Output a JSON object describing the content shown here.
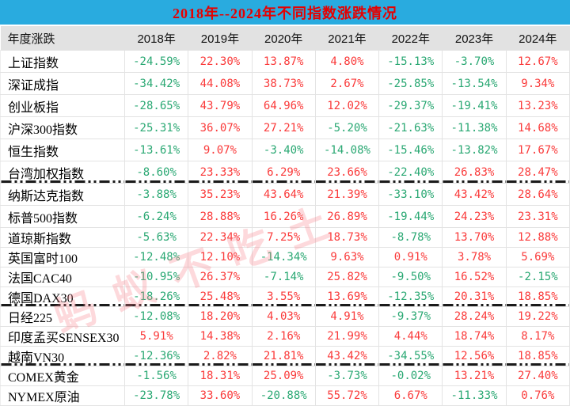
{
  "title": "2018年--2024年不同指数涨跌情况",
  "watermark": "蚂蚁不吃土",
  "colors": {
    "title_bar_bg": "#29abdf",
    "title_text": "#e60000",
    "header_bg": "#e2e2e2",
    "positive_red": "#fa3a3a",
    "negative_green": "#2aa873",
    "grid_border": "#e3e3e3",
    "separator_line": "#1a1a1a"
  },
  "chart_data": {
    "type": "table",
    "title": "2018年--2024年不同指数涨跌情况",
    "legend_note": "red = gain, green = loss; dash-dot lines separate index groups",
    "columns": [
      "年度涨跌",
      "2018年",
      "2019年",
      "2020年",
      "2021年",
      "2022年",
      "2023年",
      "2024年"
    ],
    "rows": [
      {
        "name": "上证指数",
        "values": [
          "-24.59%",
          "22.30%",
          "13.87%",
          "4.80%",
          "-15.13%",
          "-3.70%",
          "12.67%"
        ]
      },
      {
        "name": "深证成指",
        "values": [
          "-34.42%",
          "44.08%",
          "38.73%",
          "2.67%",
          "-25.85%",
          "-13.54%",
          "9.34%"
        ]
      },
      {
        "name": "创业板指",
        "values": [
          "-28.65%",
          "43.79%",
          "64.96%",
          "12.02%",
          "-29.37%",
          "-19.41%",
          "13.23%"
        ]
      },
      {
        "name": "沪深300指数",
        "values": [
          "-25.31%",
          "36.07%",
          "27.21%",
          "-5.20%",
          "-21.63%",
          "-11.38%",
          "14.68%"
        ]
      },
      {
        "name": "恒生指数",
        "values": [
          "-13.61%",
          "9.07%",
          "-3.40%",
          "-14.08%",
          "-15.46%",
          "-13.82%",
          "17.67%"
        ]
      },
      {
        "name": "台湾加权指数",
        "values": [
          "-8.60%",
          "23.33%",
          "6.29%",
          "23.66%",
          "-22.40%",
          "26.83%",
          "28.47%"
        ],
        "group_end": true
      },
      {
        "name": "纳斯达克指数",
        "values": [
          "-3.88%",
          "35.23%",
          "43.64%",
          "21.39%",
          "-33.10%",
          "43.42%",
          "28.64%"
        ]
      },
      {
        "name": "标普500指数",
        "values": [
          "-6.24%",
          "28.88%",
          "16.26%",
          "26.89%",
          "-19.44%",
          "24.23%",
          "23.31%"
        ]
      },
      {
        "name": "道琼斯指数",
        "values": [
          "-5.63%",
          "22.34%",
          "7.25%",
          "18.73%",
          "-8.78%",
          "13.70%",
          "12.88%"
        ]
      },
      {
        "name": "英国富时100",
        "values": [
          "-12.48%",
          "12.10%",
          "-14.34%",
          "9.63%",
          "0.91%",
          "3.78%",
          "5.69%"
        ]
      },
      {
        "name": "法国CAC40",
        "values": [
          "-10.95%",
          "26.37%",
          "-7.14%",
          "25.82%",
          "-9.50%",
          "16.52%",
          "-2.15%"
        ]
      },
      {
        "name": "德国DAX30",
        "values": [
          "-18.26%",
          "25.48%",
          "3.55%",
          "13.69%",
          "-12.35%",
          "20.31%",
          "18.85%"
        ],
        "group_end": true
      },
      {
        "name": "日经225",
        "values": [
          "-12.08%",
          "18.20%",
          "4.03%",
          "4.91%",
          "-9.37%",
          "28.24%",
          "19.22%"
        ]
      },
      {
        "name": "印度孟买SENSEX30",
        "values": [
          "5.91%",
          "14.38%",
          "2.16%",
          "21.99%",
          "4.44%",
          "18.74%",
          "8.17%"
        ]
      },
      {
        "name": "越南VN30",
        "values": [
          "-12.36%",
          "2.82%",
          "21.81%",
          "43.42%",
          "-34.55%",
          "12.56%",
          "18.85%"
        ],
        "group_end": true
      },
      {
        "name": "COMEX黄金",
        "values": [
          "-1.56%",
          "18.31%",
          "25.09%",
          "-3.73%",
          "-0.02%",
          "13.21%",
          "27.40%"
        ]
      },
      {
        "name": "NYMEX原油",
        "values": [
          "-23.78%",
          "33.60%",
          "-20.88%",
          "55.72%",
          "6.67%",
          "-11.33%",
          "0.76%"
        ]
      }
    ]
  }
}
